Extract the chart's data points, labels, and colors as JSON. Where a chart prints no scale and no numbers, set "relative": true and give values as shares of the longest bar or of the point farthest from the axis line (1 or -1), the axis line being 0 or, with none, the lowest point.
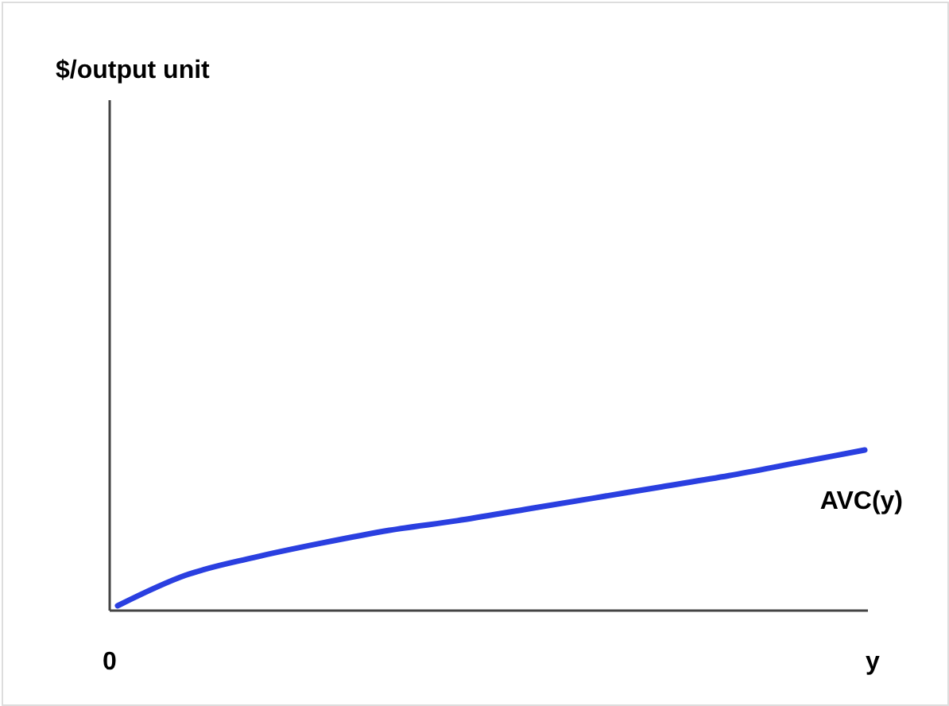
{
  "chart_data": {
    "type": "line",
    "relative": true,
    "xlabel": "y",
    "annotations": [
      "$/output unit",
      "0"
    ],
    "categories": [
      null,
      null,
      null,
      null,
      null,
      null,
      null,
      null,
      null,
      null,
      null,
      null
    ],
    "series": [
      {
        "name": "AVC(y)",
        "color": "#2a3fe0",
        "values": [
          0.03,
          0.22,
          0.33,
          0.42,
          0.5,
          0.56,
          0.63,
          0.7,
          0.77,
          0.84,
          0.92,
          1.0
        ]
      }
    ],
    "marker": "none",
    "line_style": "solid"
  }
}
